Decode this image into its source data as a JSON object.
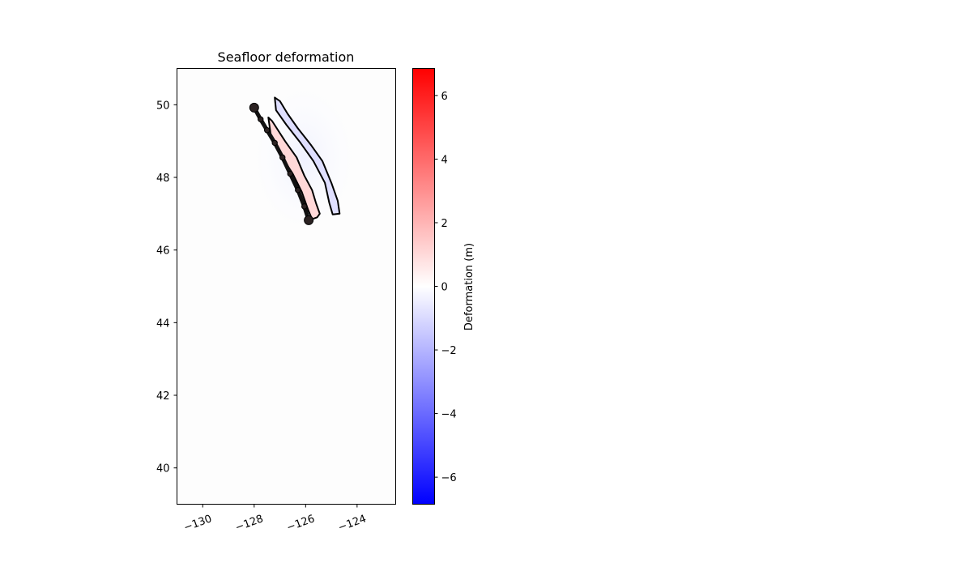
{
  "chart_data": {
    "type": "heatmap",
    "title": "Seafloor deformation",
    "xlabel": "",
    "ylabel": "",
    "xlim": [
      -131,
      -122.5
    ],
    "ylim": [
      39,
      51
    ],
    "xticks": [
      -130,
      -128,
      -126,
      -124
    ],
    "xtick_labels": [
      "−130",
      "−128",
      "−126",
      "−124"
    ],
    "yticks": [
      40,
      42,
      44,
      46,
      48,
      50
    ],
    "ytick_labels": [
      "40",
      "42",
      "44",
      "46",
      "48",
      "50"
    ],
    "colormap": "bwr",
    "colors": {
      "low": "#0000ff",
      "mid": "#ffffff",
      "high": "#ff0000"
    },
    "colorbar": {
      "label": "Deformation (m)",
      "range": [
        -6.85,
        6.85
      ],
      "ticks": [
        -6,
        -4,
        -2,
        0,
        2,
        4,
        6
      ],
      "tick_labels": [
        "−6",
        "−4",
        "−2",
        "0",
        "2",
        "4",
        "6"
      ],
      "placement": "right"
    },
    "grid": false,
    "contours": [
      {
        "name": "subsidence",
        "sign": "negative",
        "points": [
          [
            -127.2,
            50.2
          ],
          [
            -127.0,
            50.1
          ],
          [
            -126.7,
            49.75
          ],
          [
            -126.3,
            49.35
          ],
          [
            -125.8,
            48.9
          ],
          [
            -125.35,
            48.45
          ],
          [
            -125.0,
            47.85
          ],
          [
            -124.75,
            47.35
          ],
          [
            -124.68,
            47.0
          ],
          [
            -124.95,
            46.98
          ],
          [
            -125.08,
            47.3
          ],
          [
            -125.25,
            47.85
          ],
          [
            -125.7,
            48.45
          ],
          [
            -126.2,
            48.95
          ],
          [
            -126.75,
            49.45
          ],
          [
            -127.15,
            49.85
          ],
          [
            -127.2,
            50.2
          ]
        ]
      },
      {
        "name": "uplift",
        "sign": "positive",
        "points": [
          [
            -127.45,
            49.65
          ],
          [
            -127.3,
            49.55
          ],
          [
            -126.8,
            49.0
          ],
          [
            -126.35,
            48.55
          ],
          [
            -126.05,
            48.05
          ],
          [
            -125.75,
            47.65
          ],
          [
            -125.6,
            47.3
          ],
          [
            -125.45,
            47.0
          ],
          [
            -125.55,
            46.9
          ],
          [
            -125.75,
            46.85
          ],
          [
            -125.9,
            47.1
          ],
          [
            -126.15,
            47.6
          ],
          [
            -126.5,
            48.1
          ],
          [
            -126.95,
            48.6
          ],
          [
            -127.35,
            49.15
          ],
          [
            -127.45,
            49.65
          ]
        ]
      }
    ],
    "fault_trace": [
      [
        -128.0,
        49.92
      ],
      [
        -127.75,
        49.6
      ],
      [
        -127.5,
        49.3
      ],
      [
        -127.2,
        48.95
      ],
      [
        -126.9,
        48.55
      ],
      [
        -126.6,
        48.1
      ],
      [
        -126.3,
        47.65
      ],
      [
        -126.05,
        47.2
      ],
      [
        -125.88,
        46.82
      ]
    ]
  }
}
